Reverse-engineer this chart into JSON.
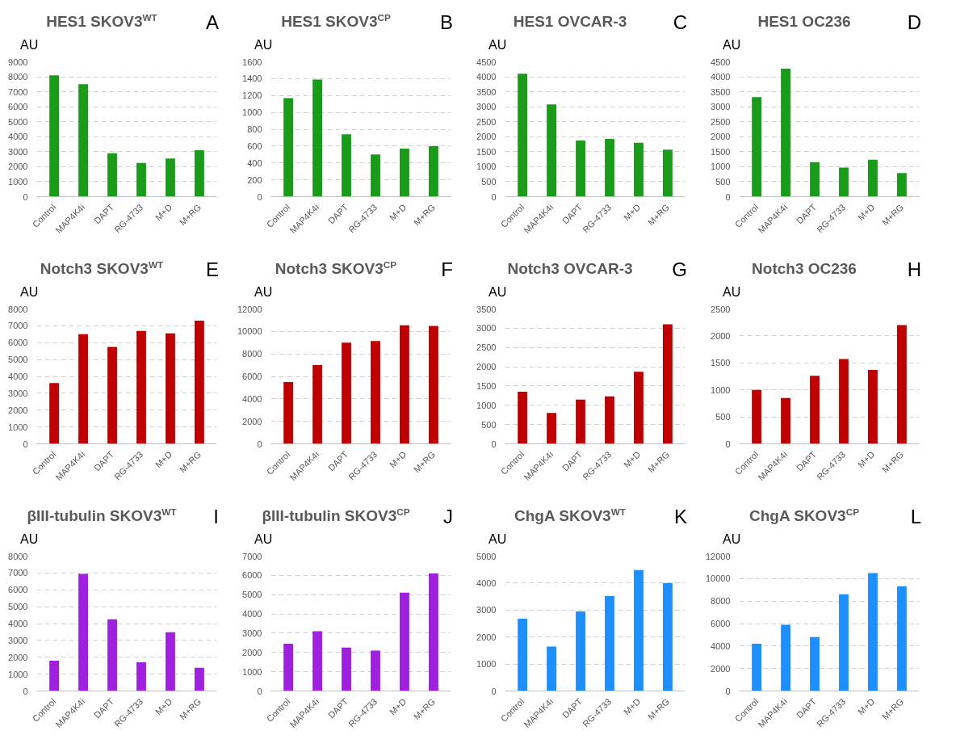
{
  "chart_data": [
    {
      "type": "bar",
      "title": "HES1 SKOV3$^{WT}$",
      "ylabel": "AU",
      "annotations": [
        "A"
      ],
      "categories": [
        "Control",
        "MAP4K4i",
        "DAPT",
        "RG-4733",
        "M+D",
        "M+RG"
      ],
      "values": [
        8100,
        7500,
        2900,
        2250,
        2550,
        3100
      ],
      "color": "#1a9c1a",
      "ylim": [
        0,
        9000
      ],
      "yticks": [
        0,
        1000,
        2000,
        3000,
        4000,
        5000,
        6000,
        7000,
        8000,
        9000
      ],
      "grid": "y"
    },
    {
      "type": "bar",
      "title": "HES1 SKOV3$^{CP}$",
      "ylabel": "AU",
      "annotations": [
        "B"
      ],
      "categories": [
        "Control",
        "MAP4K4i",
        "DAPT",
        "RG-4733",
        "M+D",
        "M+RG"
      ],
      "values": [
        1170,
        1390,
        740,
        500,
        570,
        600
      ],
      "color": "#1a9c1a",
      "ylim": [
        0,
        1600
      ],
      "yticks": [
        0,
        200,
        400,
        600,
        800,
        1000,
        1200,
        1400,
        1600
      ],
      "grid": "y"
    },
    {
      "type": "bar",
      "title": "HES1 OVCAR-3",
      "ylabel": "AU",
      "annotations": [
        "C"
      ],
      "categories": [
        "Control",
        "MAP4K4i",
        "DAPT",
        "RG-4733",
        "M+D",
        "M+RG"
      ],
      "values": [
        4100,
        3080,
        1870,
        1930,
        1800,
        1570
      ],
      "color": "#1a9c1a",
      "ylim": [
        0,
        4500
      ],
      "yticks": [
        0,
        500,
        1000,
        1500,
        2000,
        2500,
        3000,
        3500,
        4000,
        4500
      ],
      "grid": "y"
    },
    {
      "type": "bar",
      "title": "HES1 OC236",
      "ylabel": "AU",
      "annotations": [
        "D"
      ],
      "categories": [
        "Control",
        "MAP4K4i",
        "DAPT",
        "RG-4733",
        "M+D",
        "M+RG"
      ],
      "values": [
        3320,
        4270,
        1150,
        970,
        1230,
        790
      ],
      "color": "#1a9c1a",
      "ylim": [
        0,
        4500
      ],
      "yticks": [
        0,
        500,
        1000,
        1500,
        2000,
        2500,
        3000,
        3500,
        4000,
        4500
      ],
      "grid": "y"
    },
    {
      "type": "bar",
      "title": "Notch3 SKOV3$^{WT}$",
      "ylabel": "AU",
      "annotations": [
        "E"
      ],
      "categories": [
        "Control",
        "MAP4K4i",
        "DAPT",
        "RG-4733",
        "M+D",
        "M+RG"
      ],
      "values": [
        3600,
        6500,
        5750,
        6700,
        6550,
        7300
      ],
      "color": "#c00000",
      "ylim": [
        0,
        8000
      ],
      "yticks": [
        0,
        1000,
        2000,
        3000,
        4000,
        5000,
        6000,
        7000,
        8000
      ],
      "grid": "y"
    },
    {
      "type": "bar",
      "title": "Notch3 SKOV3$^{CP}$",
      "ylabel": "AU",
      "annotations": [
        "F"
      ],
      "categories": [
        "Control",
        "MAP4K4i",
        "DAPT",
        "RG-4733",
        "M+D",
        "M+RG"
      ],
      "values": [
        5500,
        7000,
        9000,
        9150,
        10550,
        10500
      ],
      "color": "#c00000",
      "ylim": [
        0,
        12000
      ],
      "yticks": [
        0,
        2000,
        4000,
        6000,
        8000,
        10000,
        12000
      ],
      "grid": "y"
    },
    {
      "type": "bar",
      "title": "Notch3 OVCAR-3",
      "ylabel": "AU",
      "annotations": [
        "G"
      ],
      "categories": [
        "Control",
        "MAP4K4i",
        "DAPT",
        "RG-4733",
        "M+D",
        "M+RG"
      ],
      "values": [
        1350,
        800,
        1150,
        1230,
        1870,
        3100
      ],
      "color": "#c00000",
      "ylim": [
        0,
        3500
      ],
      "yticks": [
        0,
        500,
        1000,
        1500,
        2000,
        2500,
        3000,
        3500
      ],
      "grid": "y"
    },
    {
      "type": "bar",
      "title": "Notch3 OC236",
      "ylabel": "AU",
      "annotations": [
        "H"
      ],
      "categories": [
        "Control",
        "MAP4K4i",
        "DAPT",
        "RG-4733",
        "M+D",
        "M+RG"
      ],
      "values": [
        1000,
        850,
        1260,
        1570,
        1370,
        2200
      ],
      "color": "#c00000",
      "ylim": [
        0,
        2500
      ],
      "yticks": [
        0,
        500,
        1000,
        1500,
        2000,
        2500
      ],
      "grid": "y"
    },
    {
      "type": "bar",
      "title": "βIII-tubulin SKOV3$^{WT}$",
      "ylabel": "AU",
      "annotations": [
        "I"
      ],
      "categories": [
        "Control",
        "MAP4K4i",
        "DAPT",
        "RG-4733",
        "M+D",
        "M+RG"
      ],
      "values": [
        1800,
        6950,
        4250,
        1700,
        3480,
        1380
      ],
      "color": "#a020e0",
      "ylim": [
        0,
        8000
      ],
      "yticks": [
        0,
        1000,
        2000,
        3000,
        4000,
        5000,
        6000,
        7000,
        8000
      ],
      "grid": "y"
    },
    {
      "type": "bar",
      "title": "βIII-tubulin SKOV3$^{CP}$",
      "ylabel": "AU",
      "annotations": [
        "J"
      ],
      "categories": [
        "Control",
        "MAP4K4i",
        "DAPT",
        "RG-4733",
        "M+D",
        "M+RG"
      ],
      "values": [
        2450,
        3100,
        2250,
        2100,
        5100,
        6100
      ],
      "color": "#a020e0",
      "ylim": [
        0,
        7000
      ],
      "yticks": [
        0,
        1000,
        2000,
        3000,
        4000,
        5000,
        6000,
        7000
      ],
      "grid": "y"
    },
    {
      "type": "bar",
      "title": "ChgA SKOV3$^{WT}$",
      "ylabel": "AU",
      "annotations": [
        "K"
      ],
      "categories": [
        "Control",
        "MAP4K4i",
        "DAPT",
        "RG-4733",
        "M+D",
        "M+RG"
      ],
      "values": [
        2680,
        1650,
        2950,
        3520,
        4480,
        4000
      ],
      "color": "#1e8fff",
      "ylim": [
        0,
        5000
      ],
      "yticks": [
        0,
        1000,
        2000,
        3000,
        4000,
        5000
      ],
      "grid": "y"
    },
    {
      "type": "bar",
      "title": "ChgA SKOV3$^{CP}$",
      "ylabel": "AU",
      "annotations": [
        "L"
      ],
      "categories": [
        "Control",
        "MAP4K4i",
        "DAPT",
        "RG-4733",
        "M+D",
        "M+RG"
      ],
      "values": [
        4200,
        5900,
        4800,
        8600,
        10500,
        9300
      ],
      "color": "#1e8fff",
      "ylim": [
        0,
        12000
      ],
      "yticks": [
        0,
        2000,
        4000,
        6000,
        8000,
        10000,
        12000
      ],
      "grid": "y"
    }
  ]
}
